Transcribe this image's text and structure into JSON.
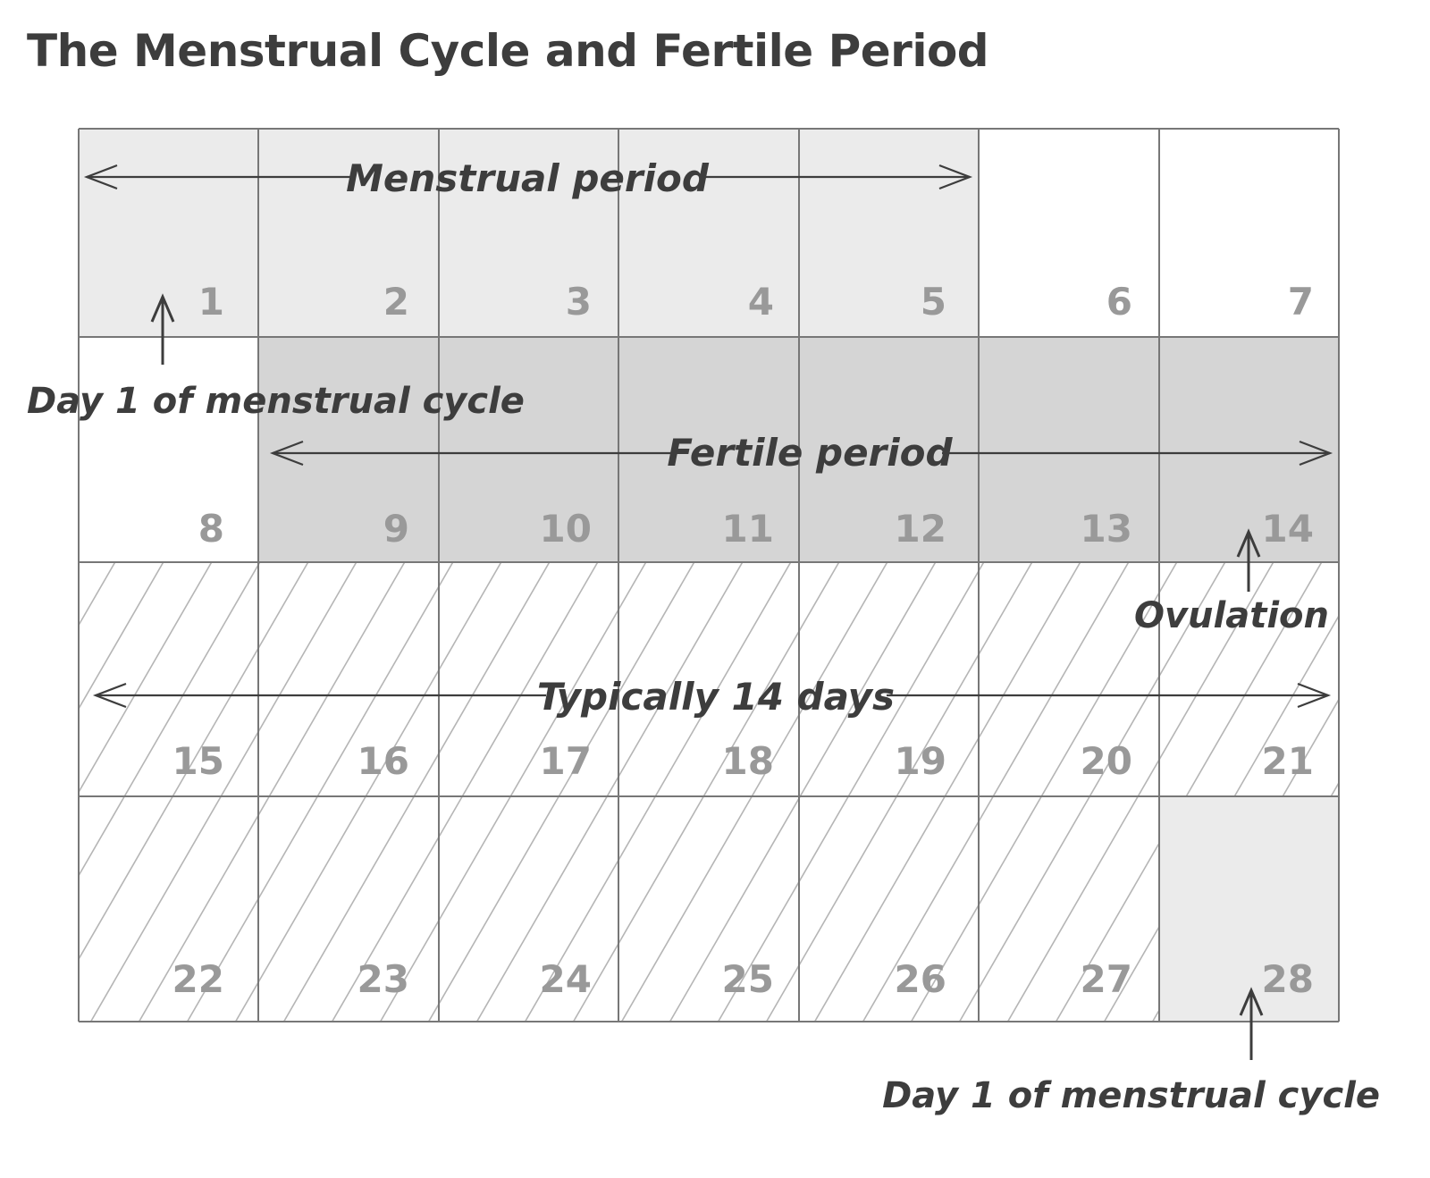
{
  "title": "The Menstrual Cycle and Fertile Period",
  "colors": {
    "menstrual": "#ebebeb",
    "fertile": "#d5d5d5",
    "grid": "#777777",
    "day_number": "#999999",
    "label": "#3d3d3d",
    "hatch": "#b5b5b5"
  },
  "days": [
    {
      "num": "1",
      "phase": "menstrual"
    },
    {
      "num": "2",
      "phase": "menstrual"
    },
    {
      "num": "3",
      "phase": "menstrual"
    },
    {
      "num": "4",
      "phase": "menstrual"
    },
    {
      "num": "5",
      "phase": "menstrual"
    },
    {
      "num": "6",
      "phase": "none"
    },
    {
      "num": "7",
      "phase": "none"
    },
    {
      "num": "8",
      "phase": "none"
    },
    {
      "num": "9",
      "phase": "fertile"
    },
    {
      "num": "10",
      "phase": "fertile"
    },
    {
      "num": "11",
      "phase": "fertile"
    },
    {
      "num": "12",
      "phase": "fertile"
    },
    {
      "num": "13",
      "phase": "fertile"
    },
    {
      "num": "14",
      "phase": "fertile"
    },
    {
      "num": "15",
      "phase": "luteal"
    },
    {
      "num": "16",
      "phase": "luteal"
    },
    {
      "num": "17",
      "phase": "luteal"
    },
    {
      "num": "18",
      "phase": "luteal"
    },
    {
      "num": "19",
      "phase": "luteal"
    },
    {
      "num": "20",
      "phase": "luteal"
    },
    {
      "num": "21",
      "phase": "luteal"
    },
    {
      "num": "22",
      "phase": "luteal"
    },
    {
      "num": "23",
      "phase": "luteal"
    },
    {
      "num": "24",
      "phase": "luteal"
    },
    {
      "num": "25",
      "phase": "luteal"
    },
    {
      "num": "26",
      "phase": "luteal"
    },
    {
      "num": "27",
      "phase": "luteal"
    },
    {
      "num": "28",
      "phase": "menstrual"
    }
  ],
  "labels": {
    "menstrual_period": "Menstrual period",
    "fertile_period": "Fertile period",
    "typically_14_days": "Typically 14 days",
    "ovulation": "Ovulation",
    "day1_start": "Day 1 of menstrual cycle",
    "day1_end": "Day 1 of menstrual cycle"
  }
}
